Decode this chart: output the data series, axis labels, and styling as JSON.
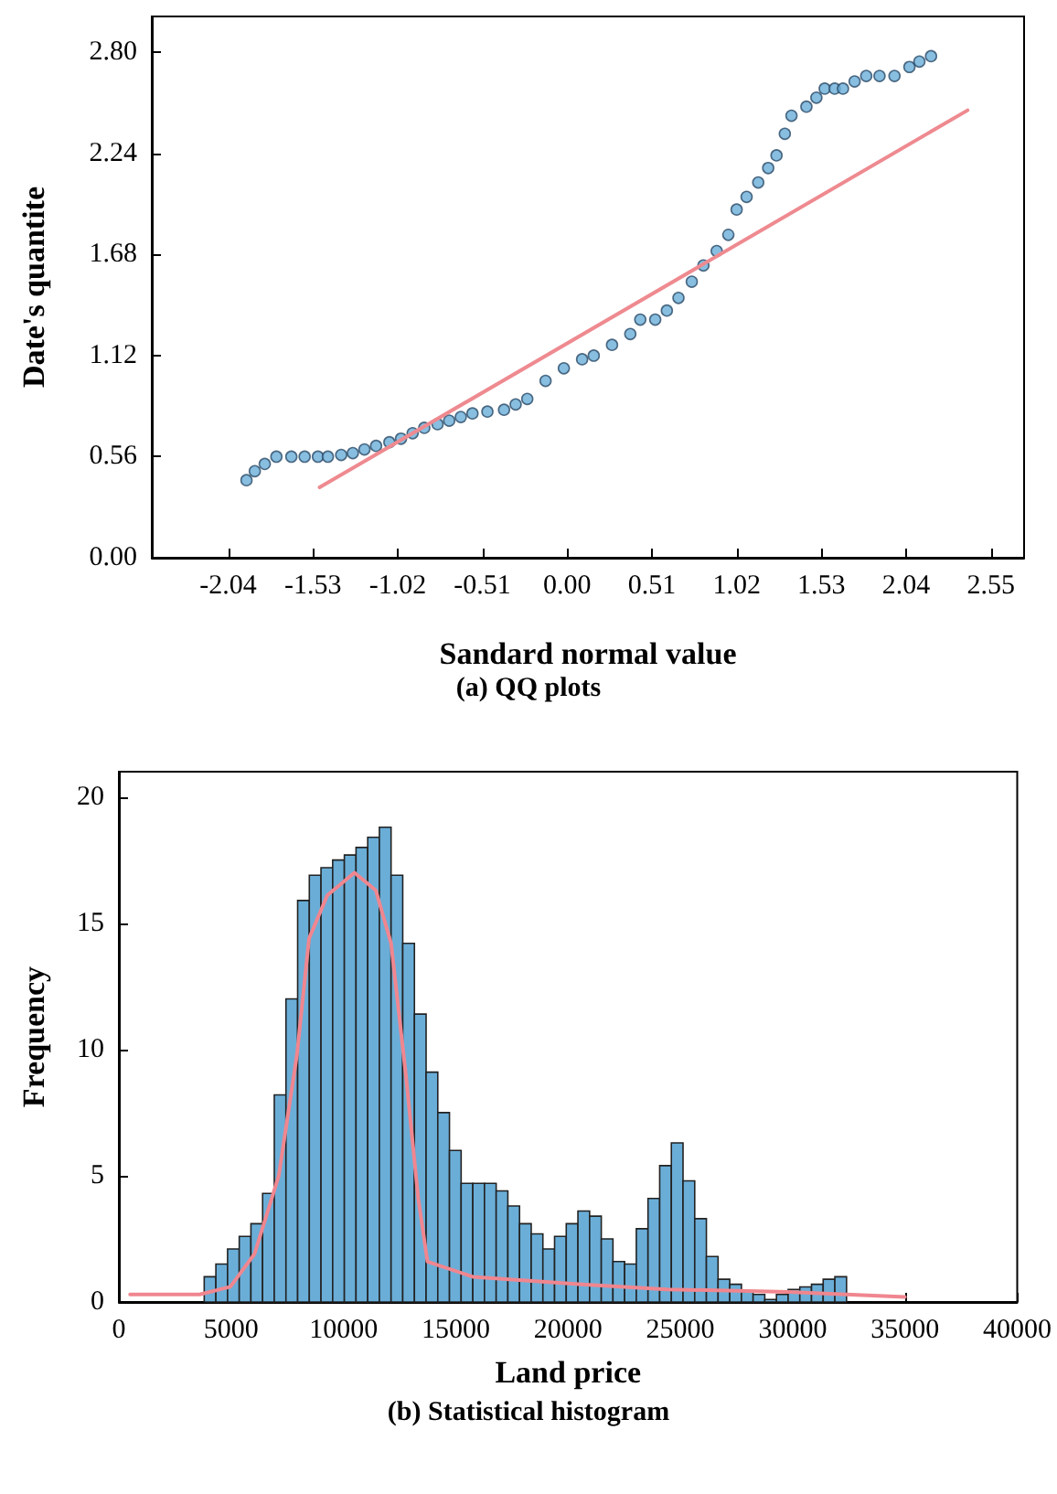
{
  "chart_data": [
    {
      "type": "scatter",
      "title": "(a) QQ plots",
      "xlabel": "Sandard normal value",
      "ylabel": "Date's quantite",
      "xlim": [
        -2.5,
        2.75
      ],
      "ylim": [
        0,
        3.0
      ],
      "xticks": [
        -2.04,
        -1.53,
        -1.02,
        -0.51,
        {
          "value": 0,
          "label": "0.00"
        },
        0.51,
        1.02,
        1.53,
        2.04,
        2.55
      ],
      "yticks": [
        {
          "value": 0,
          "label": "0.00"
        },
        0.56,
        1.12,
        1.68,
        2.24,
        {
          "value": 2.8,
          "label": "2.80"
        }
      ],
      "grid": false,
      "series": [
        {
          "marker": "circle",
          "color": "#6aaed8",
          "x": [
            -1.93,
            -1.88,
            -1.82,
            -1.75,
            -1.66,
            -1.58,
            -1.5,
            -1.44,
            -1.36,
            -1.29,
            -1.22,
            -1.15,
            -1.07,
            -1.0,
            -0.93,
            -0.86,
            -0.78,
            -0.71,
            -0.64,
            -0.57,
            -0.48,
            -0.38,
            -0.31,
            -0.24,
            -0.13,
            -0.02,
            0.09,
            0.16,
            0.27,
            0.38,
            0.44,
            0.53,
            0.6,
            0.67,
            0.75,
            0.82,
            0.9,
            0.97,
            1.02,
            1.08,
            1.15,
            1.21,
            1.26,
            1.31,
            1.35,
            1.44,
            1.5,
            1.55,
            1.61,
            1.66,
            1.73,
            1.8,
            1.88,
            1.97,
            2.06,
            2.12,
            2.19
          ],
          "values": [
            0.43,
            0.48,
            0.52,
            0.56,
            0.56,
            0.56,
            0.56,
            0.56,
            0.57,
            0.58,
            0.6,
            0.62,
            0.64,
            0.66,
            0.69,
            0.72,
            0.74,
            0.76,
            0.78,
            0.8,
            0.81,
            0.82,
            0.85,
            0.88,
            0.98,
            1.05,
            1.1,
            1.12,
            1.18,
            1.24,
            1.32,
            1.32,
            1.37,
            1.44,
            1.53,
            1.62,
            1.7,
            1.79,
            1.93,
            2.0,
            2.08,
            2.16,
            2.23,
            2.35,
            2.45,
            2.5,
            2.55,
            2.6,
            2.6,
            2.6,
            2.64,
            2.67,
            2.67,
            2.67,
            2.72,
            2.75,
            2.78
          ]
        },
        {
          "type": "line",
          "color": "#ee8a90",
          "x": [
            -1.49,
            2.41
          ],
          "values": [
            0.39,
            2.48
          ]
        }
      ]
    },
    {
      "type": "histogram",
      "title": "(b) Statistical histogram",
      "xlabel": "Land price",
      "ylabel": "Frequency",
      "xlim": [
        0,
        40000
      ],
      "ylim": [
        0,
        21
      ],
      "xticks": [
        0,
        5000,
        10000,
        15000,
        20000,
        25000,
        30000,
        35000,
        40000
      ],
      "yticks": [
        0,
        5,
        10,
        15,
        20
      ],
      "grid": false,
      "series": [
        {
          "color": "#6aaed8",
          "bins": [
            3800,
            4320,
            4840,
            5360,
            5880,
            6400,
            6920,
            7440,
            7960,
            8480,
            9000,
            9520,
            10040,
            10560,
            11080,
            11600,
            12120,
            12640,
            13160,
            13680,
            14200,
            14720,
            15240,
            15760,
            16280,
            16800,
            17320,
            17840,
            18360,
            18880,
            19400,
            19920,
            20440,
            20960,
            21480,
            22000,
            22520,
            23040,
            23560,
            24080,
            24600,
            25120,
            25640,
            26160,
            26680,
            27200,
            27720,
            28240,
            28760,
            29280,
            29800,
            30320,
            30840,
            31360,
            31880,
            32400
          ],
          "values": [
            1.0,
            1.5,
            2.1,
            2.6,
            3.1,
            4.3,
            8.2,
            12.0,
            15.9,
            16.9,
            17.2,
            17.5,
            17.7,
            18.0,
            18.4,
            18.8,
            16.9,
            14.2,
            11.4,
            9.1,
            7.5,
            6.0,
            4.7,
            4.7,
            4.7,
            4.4,
            3.8,
            3.1,
            2.7,
            2.1,
            2.6,
            3.1,
            3.6,
            3.4,
            2.5,
            1.6,
            1.5,
            2.9,
            4.1,
            5.4,
            6.3,
            4.8,
            3.3,
            1.8,
            0.9,
            0.7,
            0.4,
            0.3,
            0.1,
            0.3,
            0.5,
            0.6,
            0.7,
            0.9,
            1.0
          ]
        },
        {
          "type": "line",
          "color": "#f0868f",
          "x": [
            500,
            3600,
            4960,
            6040,
            7120,
            7930,
            8470,
            9280,
            10490,
            11440,
            12120,
            12790,
            13330,
            13740,
            15760,
            19000,
            20620,
            24400,
            29800,
            35000
          ],
          "values": [
            0.3,
            0.3,
            0.6,
            1.9,
            5.0,
            9.8,
            14.4,
            16.1,
            17.0,
            16.3,
            14.2,
            8.9,
            4.1,
            1.6,
            1.0,
            0.8,
            0.7,
            0.5,
            0.4,
            0.2
          ]
        }
      ]
    }
  ]
}
